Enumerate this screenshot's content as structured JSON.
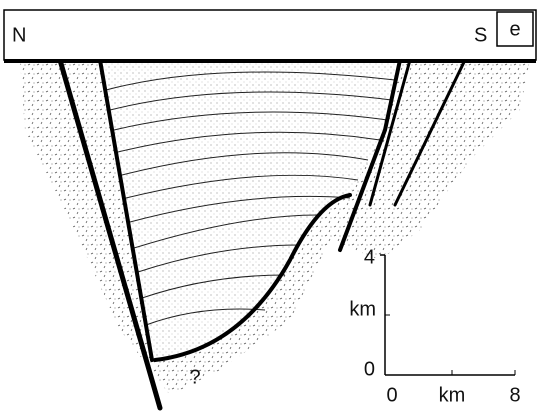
{
  "header": {
    "left": "N",
    "right": "S",
    "panel": "e"
  },
  "annotation": "?",
  "scale_bar": {
    "vertical": {
      "top": 4,
      "unit": "km",
      "bottom": 0
    },
    "horizontal": {
      "left": 0,
      "unit": "km",
      "right": 8
    }
  }
}
